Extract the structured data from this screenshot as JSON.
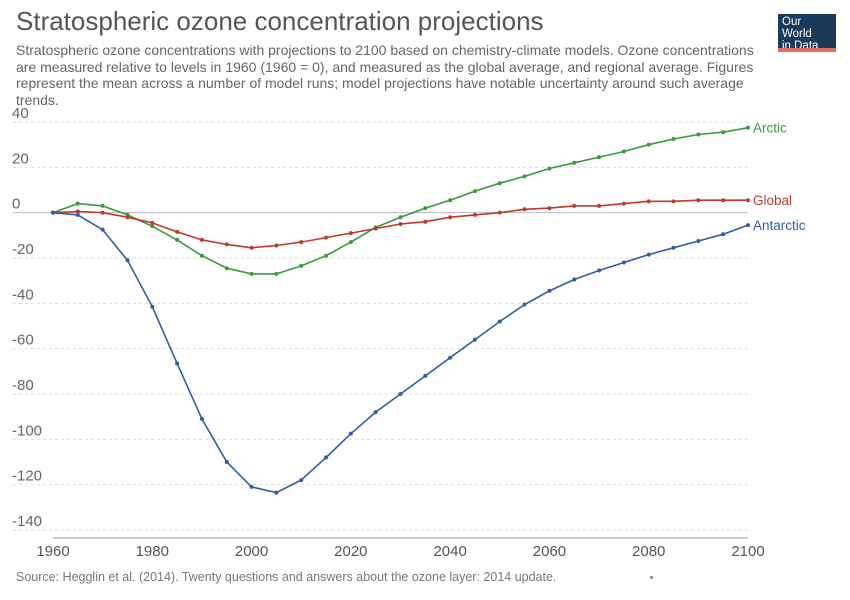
{
  "header": {
    "title": "Stratospheric ozone concentration projections",
    "subtitle": "Stratospheric ozone concentrations with projections to 2100 based on chemistry-climate models. Ozone concentrations are measured relative to levels in 1960 (1960 = 0), and measured as the global average, and regional average. Figures represent the mean across a number of model runs; model projections have notable uncertainty around such average trends."
  },
  "logo": {
    "line1": "Our World",
    "line2": "in Data",
    "bg_color": "#1a3a5c",
    "bar_color": "#e56e5a"
  },
  "footer": {
    "source": "Source: Hegglin et al. (2014). Twenty questions and answers about the ozone layer: 2014 update."
  },
  "chart_data": {
    "type": "line",
    "title": "Stratospheric ozone concentration projections",
    "xlabel": "",
    "ylabel": "",
    "xlim": [
      1960,
      2100
    ],
    "ylim": [
      -140,
      40
    ],
    "x_ticks": [
      1960,
      1980,
      2000,
      2020,
      2040,
      2060,
      2080,
      2100
    ],
    "y_ticks": [
      40,
      20,
      0,
      -20,
      -40,
      -60,
      -80,
      -100,
      -120,
      -140
    ],
    "grid": "horizontal-dashed",
    "legend": "end-labels-right",
    "x": [
      1960,
      1965,
      1970,
      1975,
      1980,
      1985,
      1990,
      1995,
      2000,
      2005,
      2010,
      2015,
      2020,
      2025,
      2030,
      2035,
      2040,
      2045,
      2050,
      2055,
      2060,
      2065,
      2070,
      2075,
      2080,
      2085,
      2090,
      2095,
      2100
    ],
    "series": [
      {
        "name": "Arctic",
        "color": "#3a9a3a",
        "values": [
          0,
          4,
          3,
          -1,
          -6,
          -12,
          -19,
          -24.5,
          -27,
          -27,
          -23.5,
          -19,
          -13,
          -6.5,
          -2,
          2,
          5.5,
          9.5,
          13,
          16,
          19.5,
          22,
          24.5,
          27,
          30,
          32.5,
          34.5,
          35.5,
          37.5
        ]
      },
      {
        "name": "Global",
        "color": "#c0392b",
        "values": [
          0,
          0.5,
          0,
          -2,
          -4.5,
          -8.5,
          -12,
          -14,
          -15.5,
          -14.5,
          -13,
          -11,
          -9,
          -7,
          -5,
          -4,
          -2,
          -1,
          0,
          1.5,
          2,
          3,
          3,
          4,
          5,
          5,
          5.5,
          5.5,
          5.5
        ]
      },
      {
        "name": "Antarctic",
        "color": "#2f5ea8",
        "values": [
          0,
          -1,
          -7.5,
          -21,
          -41.5,
          -66.5,
          -91,
          -110,
          -121,
          -123.5,
          -118,
          -108,
          -97.5,
          -88,
          -80,
          -72,
          -64,
          -56,
          -48,
          -40.5,
          -34.5,
          -29.5,
          -25.5,
          -22,
          -18.5,
          -15.5,
          -12.5,
          -9.5,
          -5.5
        ]
      }
    ]
  }
}
